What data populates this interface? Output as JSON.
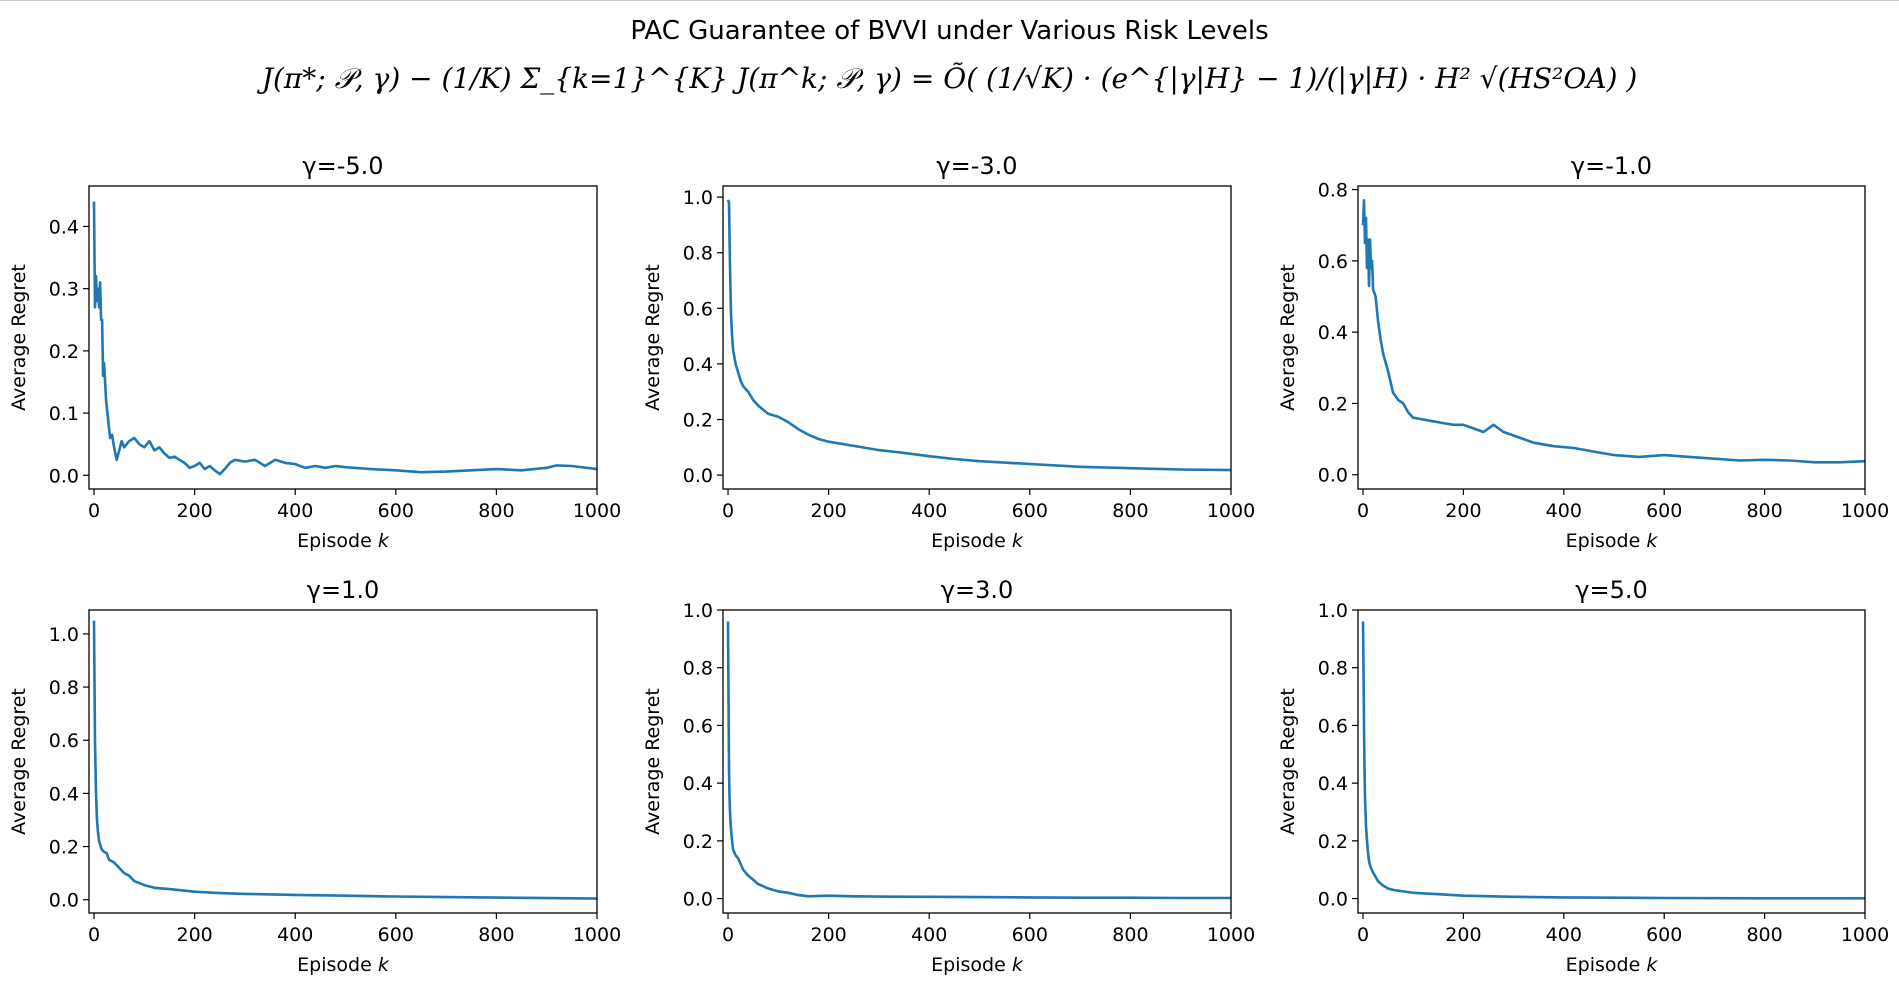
{
  "title": "PAC Guarantee of BVVI under Various Risk Levels",
  "formula": "J(π*; 𝒫, γ) − (1/K) Σ_{k=1}^{K} J(π^k; 𝒫, γ) = Õ( (1/√K) · (e^{|γ|H} − 1)/(|γ|H) · H² √(HS²OA) )",
  "colors": {
    "series": "#1f77b4",
    "axis": "#000000"
  },
  "chart_data": [
    {
      "type": "line",
      "title": "γ=-5.0",
      "xlabel": "Episode k",
      "ylabel": "Average Regret",
      "xlim": [
        -10,
        1000
      ],
      "ylim": [
        -0.022,
        0.465
      ],
      "xticks": [
        0,
        200,
        400,
        600,
        800,
        1000
      ],
      "yticks": [
        0.0,
        0.1,
        0.2,
        0.3,
        0.4
      ],
      "ytick_labels": [
        "0.0",
        "0.1",
        "0.2",
        "0.3",
        "0.4"
      ],
      "series": [
        {
          "x": [
            0,
            2,
            4,
            6,
            8,
            10,
            12,
            14,
            16,
            18,
            20,
            24,
            28,
            32,
            36,
            40,
            45,
            50,
            55,
            60,
            70,
            80,
            90,
            100,
            110,
            120,
            130,
            140,
            150,
            160,
            170,
            180,
            190,
            200,
            210,
            220,
            230,
            240,
            250,
            260,
            270,
            280,
            300,
            320,
            340,
            360,
            380,
            400,
            420,
            440,
            460,
            480,
            500,
            550,
            600,
            650,
            700,
            750,
            800,
            850,
            900,
            920,
            950,
            1000
          ],
          "y": [
            0.44,
            0.27,
            0.32,
            0.28,
            0.3,
            0.27,
            0.31,
            0.25,
            0.25,
            0.16,
            0.18,
            0.12,
            0.09,
            0.06,
            0.065,
            0.045,
            0.025,
            0.04,
            0.055,
            0.045,
            0.055,
            0.06,
            0.05,
            0.045,
            0.055,
            0.04,
            0.045,
            0.035,
            0.028,
            0.03,
            0.025,
            0.02,
            0.012,
            0.015,
            0.02,
            0.01,
            0.015,
            0.008,
            0.002,
            0.01,
            0.02,
            0.025,
            0.022,
            0.025,
            0.015,
            0.025,
            0.02,
            0.018,
            0.012,
            0.015,
            0.012,
            0.015,
            0.013,
            0.01,
            0.008,
            0.005,
            0.006,
            0.008,
            0.01,
            0.008,
            0.012,
            0.016,
            0.015,
            0.01
          ]
        }
      ]
    },
    {
      "type": "line",
      "title": "γ=-3.0",
      "xlabel": "Episode k",
      "ylabel": "Average Regret",
      "xlim": [
        -10,
        1000
      ],
      "ylim": [
        -0.05,
        1.04
      ],
      "xticks": [
        0,
        200,
        400,
        600,
        800,
        1000
      ],
      "yticks": [
        0.0,
        0.2,
        0.4,
        0.6,
        0.8,
        1.0
      ],
      "ytick_labels": [
        "0.0",
        "0.2",
        "0.4",
        "0.6",
        "0.8",
        "1.0"
      ],
      "series": [
        {
          "x": [
            0,
            2,
            4,
            6,
            8,
            10,
            15,
            20,
            25,
            30,
            40,
            50,
            60,
            70,
            80,
            100,
            120,
            140,
            160,
            180,
            200,
            250,
            300,
            350,
            400,
            450,
            500,
            600,
            700,
            800,
            900,
            1000
          ],
          "y": [
            0.99,
            0.98,
            0.75,
            0.58,
            0.5,
            0.45,
            0.4,
            0.37,
            0.34,
            0.32,
            0.3,
            0.27,
            0.25,
            0.235,
            0.22,
            0.21,
            0.19,
            0.165,
            0.145,
            0.13,
            0.12,
            0.105,
            0.09,
            0.08,
            0.068,
            0.058,
            0.05,
            0.04,
            0.03,
            0.025,
            0.02,
            0.018
          ]
        }
      ]
    },
    {
      "type": "line",
      "title": "γ=-1.0",
      "xlabel": "Episode k",
      "ylabel": "Average Regret",
      "xlim": [
        -10,
        1000
      ],
      "ylim": [
        -0.04,
        0.81
      ],
      "xticks": [
        0,
        200,
        400,
        600,
        800,
        1000
      ],
      "yticks": [
        0.0,
        0.2,
        0.4,
        0.6,
        0.8
      ],
      "ytick_labels": [
        "0.0",
        "0.2",
        "0.4",
        "0.6",
        "0.8"
      ],
      "series": [
        {
          "x": [
            0,
            2,
            4,
            6,
            8,
            10,
            12,
            14,
            16,
            18,
            20,
            25,
            30,
            35,
            40,
            50,
            60,
            70,
            80,
            90,
            100,
            120,
            140,
            160,
            180,
            200,
            220,
            240,
            260,
            280,
            300,
            340,
            380,
            420,
            460,
            500,
            550,
            600,
            650,
            700,
            750,
            800,
            850,
            900,
            950,
            1000
          ],
          "y": [
            0.7,
            0.77,
            0.65,
            0.72,
            0.58,
            0.66,
            0.53,
            0.66,
            0.58,
            0.6,
            0.52,
            0.5,
            0.43,
            0.38,
            0.34,
            0.29,
            0.23,
            0.21,
            0.2,
            0.175,
            0.16,
            0.155,
            0.15,
            0.145,
            0.14,
            0.14,
            0.13,
            0.12,
            0.14,
            0.12,
            0.11,
            0.09,
            0.08,
            0.075,
            0.065,
            0.055,
            0.05,
            0.055,
            0.05,
            0.045,
            0.04,
            0.042,
            0.04,
            0.035,
            0.035,
            0.038
          ]
        }
      ]
    },
    {
      "type": "line",
      "title": "γ=1.0",
      "xlabel": "Episode k",
      "ylabel": "Average Regret",
      "xlim": [
        -10,
        1000
      ],
      "ylim": [
        -0.05,
        1.09
      ],
      "xticks": [
        0,
        200,
        400,
        600,
        800,
        1000
      ],
      "yticks": [
        0.0,
        0.2,
        0.4,
        0.6,
        0.8,
        1.0
      ],
      "ytick_labels": [
        "0.0",
        "0.2",
        "0.4",
        "0.6",
        "0.8",
        "1.0"
      ],
      "series": [
        {
          "x": [
            0,
            2,
            4,
            6,
            8,
            10,
            15,
            20,
            25,
            30,
            40,
            50,
            60,
            70,
            80,
            100,
            120,
            150,
            200,
            250,
            300,
            400,
            500,
            600,
            700,
            800,
            900,
            1000
          ],
          "y": [
            1.05,
            0.6,
            0.4,
            0.3,
            0.25,
            0.22,
            0.19,
            0.18,
            0.175,
            0.15,
            0.14,
            0.12,
            0.1,
            0.09,
            0.07,
            0.055,
            0.045,
            0.04,
            0.03,
            0.025,
            0.022,
            0.018,
            0.015,
            0.012,
            0.01,
            0.008,
            0.006,
            0.004
          ]
        }
      ]
    },
    {
      "type": "line",
      "title": "γ=3.0",
      "xlabel": "Episode k",
      "ylabel": "Average Regret",
      "xlim": [
        -10,
        1000
      ],
      "ylim": [
        -0.05,
        1.0
      ],
      "xticks": [
        0,
        200,
        400,
        600,
        800,
        1000
      ],
      "yticks": [
        0.0,
        0.2,
        0.4,
        0.6,
        0.8,
        1.0
      ],
      "ytick_labels": [
        "0.0",
        "0.2",
        "0.4",
        "0.6",
        "0.8",
        "1.0"
      ],
      "series": [
        {
          "x": [
            0,
            1,
            2,
            3,
            4,
            6,
            8,
            10,
            15,
            20,
            25,
            30,
            40,
            50,
            60,
            80,
            100,
            120,
            140,
            160,
            200,
            250,
            300,
            400,
            500,
            600,
            700,
            800,
            900,
            1000
          ],
          "y": [
            0.96,
            0.7,
            0.45,
            0.35,
            0.3,
            0.24,
            0.2,
            0.17,
            0.15,
            0.14,
            0.12,
            0.1,
            0.08,
            0.065,
            0.05,
            0.035,
            0.025,
            0.02,
            0.012,
            0.008,
            0.01,
            0.008,
            0.007,
            0.006,
            0.005,
            0.004,
            0.003,
            0.003,
            0.002,
            0.002
          ]
        }
      ]
    },
    {
      "type": "line",
      "title": "γ=5.0",
      "xlabel": "Episode k",
      "ylabel": "Average Regret",
      "xlim": [
        -10,
        1000
      ],
      "ylim": [
        -0.05,
        1.0
      ],
      "xticks": [
        0,
        200,
        400,
        600,
        800,
        1000
      ],
      "yticks": [
        0.0,
        0.2,
        0.4,
        0.6,
        0.8,
        1.0
      ],
      "ytick_labels": [
        "0.0",
        "0.2",
        "0.4",
        "0.6",
        "0.8",
        "1.0"
      ],
      "series": [
        {
          "x": [
            0,
            1,
            2,
            3,
            4,
            6,
            8,
            10,
            12,
            15,
            20,
            25,
            30,
            40,
            50,
            60,
            80,
            100,
            150,
            200,
            300,
            400,
            500,
            600,
            800,
            1000
          ],
          "y": [
            0.96,
            0.8,
            0.6,
            0.45,
            0.35,
            0.25,
            0.2,
            0.16,
            0.13,
            0.11,
            0.09,
            0.075,
            0.06,
            0.045,
            0.035,
            0.03,
            0.025,
            0.02,
            0.015,
            0.01,
            0.006,
            0.004,
            0.003,
            0.002,
            0.001,
            0.001
          ]
        }
      ]
    }
  ]
}
